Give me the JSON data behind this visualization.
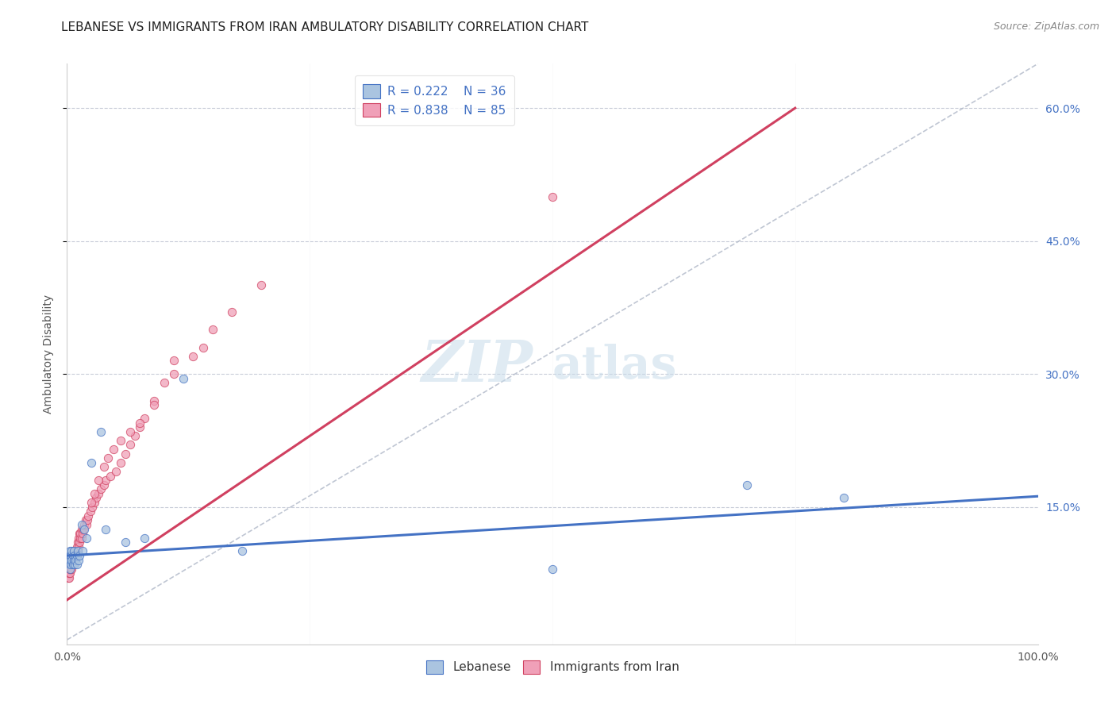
{
  "title": "LEBANESE VS IMMIGRANTS FROM IRAN AMBULATORY DISABILITY CORRELATION CHART",
  "source": "Source: ZipAtlas.com",
  "ylabel": "Ambulatory Disability",
  "xlim": [
    0,
    1.0
  ],
  "ylim": [
    -0.005,
    0.65
  ],
  "yticks": [
    0.15,
    0.3,
    0.45,
    0.6
  ],
  "ytick_labels": [
    "15.0%",
    "30.0%",
    "45.0%",
    "60.0%"
  ],
  "xticks": [
    0.0,
    0.25,
    0.5,
    0.75,
    1.0
  ],
  "xtick_labels": [
    "0.0%",
    "",
    "",
    "",
    "100.0%"
  ],
  "watermark_zip": "ZIP",
  "watermark_atlas": "atlas",
  "legend_R1": "R = 0.222",
  "legend_N1": "N = 36",
  "legend_R2": "R = 0.838",
  "legend_N2": "N = 85",
  "color_lebanese": "#aac4e0",
  "color_iran": "#f0a0b8",
  "line_color_lebanese": "#4472c4",
  "line_color_iran": "#d04060",
  "diag_line_color": "#b0b8c8",
  "background_color": "#ffffff",
  "grid_color": "#c8ccd8",
  "lebanese_x": [
    0.001,
    0.002,
    0.002,
    0.003,
    0.003,
    0.003,
    0.004,
    0.004,
    0.005,
    0.005,
    0.006,
    0.006,
    0.007,
    0.007,
    0.008,
    0.008,
    0.009,
    0.01,
    0.01,
    0.011,
    0.012,
    0.013,
    0.015,
    0.016,
    0.018,
    0.02,
    0.025,
    0.035,
    0.04,
    0.06,
    0.08,
    0.12,
    0.18,
    0.5,
    0.7,
    0.8
  ],
  "lebanese_y": [
    0.09,
    0.085,
    0.095,
    0.08,
    0.09,
    0.1,
    0.085,
    0.095,
    0.09,
    0.1,
    0.085,
    0.095,
    0.09,
    0.1,
    0.085,
    0.095,
    0.09,
    0.085,
    0.095,
    0.1,
    0.09,
    0.095,
    0.13,
    0.1,
    0.125,
    0.115,
    0.2,
    0.235,
    0.125,
    0.11,
    0.115,
    0.295,
    0.1,
    0.08,
    0.175,
    0.16
  ],
  "iran_x": [
    0.001,
    0.001,
    0.001,
    0.002,
    0.002,
    0.002,
    0.002,
    0.003,
    0.003,
    0.003,
    0.003,
    0.004,
    0.004,
    0.004,
    0.005,
    0.005,
    0.005,
    0.005,
    0.006,
    0.006,
    0.006,
    0.007,
    0.007,
    0.007,
    0.008,
    0.008,
    0.008,
    0.009,
    0.009,
    0.01,
    0.01,
    0.01,
    0.011,
    0.011,
    0.012,
    0.012,
    0.013,
    0.013,
    0.014,
    0.014,
    0.015,
    0.015,
    0.016,
    0.017,
    0.018,
    0.019,
    0.02,
    0.021,
    0.022,
    0.024,
    0.026,
    0.028,
    0.03,
    0.032,
    0.035,
    0.038,
    0.04,
    0.045,
    0.05,
    0.055,
    0.06,
    0.065,
    0.07,
    0.075,
    0.08,
    0.09,
    0.1,
    0.11,
    0.13,
    0.15,
    0.17,
    0.2,
    0.025,
    0.028,
    0.032,
    0.038,
    0.042,
    0.048,
    0.055,
    0.065,
    0.075,
    0.09,
    0.11,
    0.5,
    0.14
  ],
  "iran_y": [
    0.07,
    0.075,
    0.08,
    0.07,
    0.075,
    0.08,
    0.085,
    0.075,
    0.08,
    0.085,
    0.09,
    0.08,
    0.085,
    0.09,
    0.08,
    0.085,
    0.09,
    0.095,
    0.085,
    0.09,
    0.095,
    0.09,
    0.095,
    0.1,
    0.09,
    0.095,
    0.1,
    0.095,
    0.1,
    0.095,
    0.1,
    0.105,
    0.1,
    0.11,
    0.105,
    0.115,
    0.11,
    0.12,
    0.115,
    0.12,
    0.115,
    0.125,
    0.12,
    0.125,
    0.13,
    0.135,
    0.13,
    0.135,
    0.14,
    0.145,
    0.15,
    0.155,
    0.16,
    0.165,
    0.17,
    0.175,
    0.18,
    0.185,
    0.19,
    0.2,
    0.21,
    0.22,
    0.23,
    0.24,
    0.25,
    0.27,
    0.29,
    0.3,
    0.32,
    0.35,
    0.37,
    0.4,
    0.155,
    0.165,
    0.18,
    0.195,
    0.205,
    0.215,
    0.225,
    0.235,
    0.245,
    0.265,
    0.315,
    0.5,
    0.33
  ],
  "leb_line_x0": 0.0,
  "leb_line_y0": 0.095,
  "leb_line_x1": 1.0,
  "leb_line_y1": 0.162,
  "iran_line_x0": 0.0,
  "iran_line_y0": 0.045,
  "iran_line_x1": 0.75,
  "iran_line_y1": 0.6,
  "title_fontsize": 11,
  "axis_label_fontsize": 10,
  "tick_fontsize": 10,
  "legend_fontsize": 11,
  "marker_size": 55
}
